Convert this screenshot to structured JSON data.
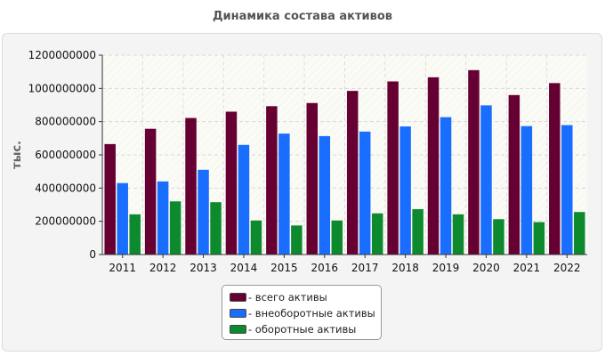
{
  "chart_data": {
    "type": "bar",
    "title": "Динамика состава активов",
    "ylabel": "тыс.",
    "xlabel": "",
    "ylim": [
      0,
      1200000000
    ],
    "yticks": [
      0,
      200000000,
      400000000,
      600000000,
      800000000,
      1000000000,
      1200000000
    ],
    "ytick_labels": [
      "0",
      "200000000",
      "400000000",
      "600000000",
      "800000000",
      "1000000000",
      "1200000000"
    ],
    "categories": [
      "2011",
      "2012",
      "2013",
      "2014",
      "2015",
      "2016",
      "2017",
      "2018",
      "2019",
      "2020",
      "2021",
      "2022"
    ],
    "series": [
      {
        "name": "- всего активы",
        "color": "#660033",
        "values": [
          665000000,
          757000000,
          822000000,
          860000000,
          893000000,
          912000000,
          985000000,
          1042000000,
          1067000000,
          1110000000,
          960000000,
          1032000000
        ]
      },
      {
        "name": "- внеоборотные активы",
        "color": "#1a6eff",
        "values": [
          430000000,
          440000000,
          510000000,
          660000000,
          728000000,
          713000000,
          740000000,
          771000000,
          827000000,
          898000000,
          773000000,
          779000000
        ]
      },
      {
        "name": "- оборотные активы",
        "color": "#0e8a2e",
        "values": [
          242000000,
          320000000,
          315000000,
          205000000,
          175000000,
          205000000,
          248000000,
          273000000,
          242000000,
          213000000,
          195000000,
          256000000
        ]
      }
    ],
    "grid": true,
    "legend_position": "bottom-center"
  }
}
